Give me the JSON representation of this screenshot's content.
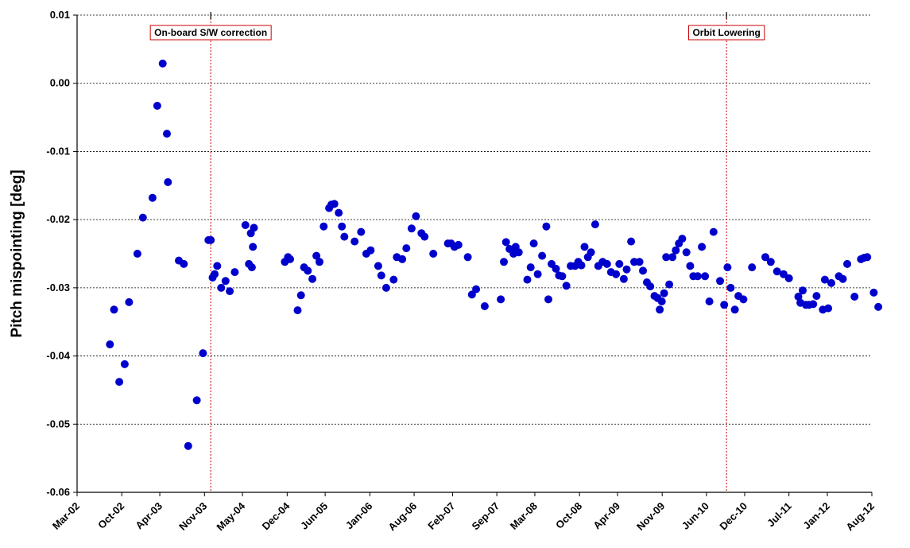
{
  "chart_data": {
    "type": "scatter",
    "title": "",
    "xlabel": "",
    "ylabel": "Pitch mispointing [deg]",
    "ylim": [
      -0.06,
      0.01
    ],
    "yticks": [
      0.01,
      0.0,
      -0.01,
      -0.02,
      -0.03,
      -0.04,
      -0.05,
      -0.06
    ],
    "ytick_labels": [
      "0.01",
      "0.00",
      "-0.01",
      "-0.02",
      "-0.03",
      "-0.04",
      "-0.05",
      "-0.06"
    ],
    "xlim": [
      "2002-03-01",
      "2012-08-01"
    ],
    "xtick_labels": [
      "Mar-02",
      "Oct-02",
      "Apr-03",
      "Nov-03",
      "May-04",
      "Dec-04",
      "Jun-05",
      "Jan-06",
      "Aug-06",
      "Feb-07",
      "Sep-07",
      "Mar-08",
      "Oct-08",
      "Apr-09",
      "Nov-09",
      "Jun-10",
      "Dec-10",
      "Jul-11",
      "Jan-12",
      "Aug-12"
    ],
    "xtick_dates": [
      "2002-03-01",
      "2002-10-01",
      "2003-04-01",
      "2003-11-01",
      "2004-05-01",
      "2004-12-01",
      "2005-06-01",
      "2006-01-01",
      "2006-08-01",
      "2007-02-01",
      "2007-09-01",
      "2008-03-01",
      "2008-10-01",
      "2009-04-01",
      "2009-11-01",
      "2010-06-01",
      "2010-12-01",
      "2011-07-01",
      "2012-01-01",
      "2012-08-01"
    ],
    "horizontal_gridlines": "dotted",
    "marker_color": "#0000cc",
    "reference_lines": [
      {
        "date": "2003-12-01",
        "color": "#cc0000",
        "label": "On-board S/W correction"
      },
      {
        "date": "2010-09-05",
        "color": "#cc0000",
        "label": "Orbit Lowering"
      }
    ],
    "series": [
      {
        "points": [
          [
            "2002-08-05",
            -0.0383
          ],
          [
            "2002-08-25",
            -0.0332
          ],
          [
            "2002-09-19",
            -0.0438
          ],
          [
            "2002-10-15",
            -0.0412
          ],
          [
            "2002-11-05",
            -0.0321
          ],
          [
            "2002-12-15",
            -0.025
          ],
          [
            "2003-01-10",
            -0.0197
          ],
          [
            "2003-02-25",
            -0.0168
          ],
          [
            "2003-03-20",
            -0.0033
          ],
          [
            "2003-04-15",
            0.0029
          ],
          [
            "2003-05-05",
            -0.0074
          ],
          [
            "2003-05-10",
            -0.0145
          ],
          [
            "2003-07-01",
            -0.026
          ],
          [
            "2003-07-25",
            -0.0265
          ],
          [
            "2003-08-15",
            -0.0532
          ],
          [
            "2003-09-25",
            -0.0465
          ],
          [
            "2003-10-25",
            -0.0396
          ],
          [
            "2003-11-20",
            -0.023
          ],
          [
            "2003-12-01",
            -0.023
          ],
          [
            "2003-12-10",
            -0.0285
          ],
          [
            "2003-12-20",
            -0.028
          ],
          [
            "2004-01-01",
            -0.0268
          ],
          [
            "2004-01-20",
            -0.03
          ],
          [
            "2004-02-10",
            -0.029
          ],
          [
            "2004-03-01",
            -0.0305
          ],
          [
            "2004-03-25",
            -0.0277
          ],
          [
            "2004-05-15",
            -0.0208
          ],
          [
            "2004-06-01",
            -0.0265
          ],
          [
            "2004-06-10",
            -0.022
          ],
          [
            "2004-06-15",
            -0.027
          ],
          [
            "2004-06-20",
            -0.024
          ],
          [
            "2004-06-25",
            -0.0212
          ],
          [
            "2004-11-20",
            -0.0262
          ],
          [
            "2004-12-05",
            -0.0255
          ],
          [
            "2004-12-15",
            -0.0258
          ],
          [
            "2005-01-20",
            -0.0333
          ],
          [
            "2005-02-05",
            -0.0311
          ],
          [
            "2005-02-20",
            -0.027
          ],
          [
            "2005-03-10",
            -0.0275
          ],
          [
            "2005-04-01",
            -0.0287
          ],
          [
            "2005-04-20",
            -0.0253
          ],
          [
            "2005-05-05",
            -0.0262
          ],
          [
            "2005-05-25",
            -0.021
          ],
          [
            "2005-06-20",
            -0.0183
          ],
          [
            "2005-07-01",
            -0.0178
          ],
          [
            "2005-07-15",
            -0.0177
          ],
          [
            "2005-08-05",
            -0.019
          ],
          [
            "2005-08-20",
            -0.021
          ],
          [
            "2005-09-01",
            -0.0225
          ],
          [
            "2005-10-20",
            -0.0232
          ],
          [
            "2005-11-20",
            -0.0218
          ],
          [
            "2005-12-15",
            -0.025
          ],
          [
            "2006-01-05",
            -0.0245
          ],
          [
            "2006-02-10",
            -0.0268
          ],
          [
            "2006-02-25",
            -0.0282
          ],
          [
            "2006-03-20",
            -0.03
          ],
          [
            "2006-04-25",
            -0.0288
          ],
          [
            "2006-05-10",
            -0.0255
          ],
          [
            "2006-06-05",
            -0.0258
          ],
          [
            "2006-06-25",
            -0.0242
          ],
          [
            "2006-07-20",
            -0.0213
          ],
          [
            "2006-08-10",
            -0.0195
          ],
          [
            "2006-09-05",
            -0.022
          ],
          [
            "2006-09-20",
            -0.0225
          ],
          [
            "2006-11-01",
            -0.025
          ],
          [
            "2007-01-10",
            -0.0235
          ],
          [
            "2007-01-25",
            -0.0235
          ],
          [
            "2007-02-10",
            -0.024
          ],
          [
            "2007-03-01",
            -0.0237
          ],
          [
            "2007-04-15",
            -0.0255
          ],
          [
            "2007-05-05",
            -0.031
          ],
          [
            "2007-05-25",
            -0.0302
          ],
          [
            "2007-07-05",
            -0.0327
          ],
          [
            "2007-09-20",
            -0.0317
          ],
          [
            "2007-10-05",
            -0.0262
          ],
          [
            "2007-10-15",
            -0.0233
          ],
          [
            "2007-11-01",
            -0.0243
          ],
          [
            "2007-11-20",
            -0.025
          ],
          [
            "2007-11-30",
            -0.024
          ],
          [
            "2007-12-15",
            -0.0248
          ],
          [
            "2008-01-25",
            -0.0288
          ],
          [
            "2008-02-10",
            -0.027
          ],
          [
            "2008-02-25",
            -0.0235
          ],
          [
            "2008-03-15",
            -0.028
          ],
          [
            "2008-04-05",
            -0.0253
          ],
          [
            "2008-04-25",
            -0.021
          ],
          [
            "2008-05-05",
            -0.0317
          ],
          [
            "2008-05-20",
            -0.0265
          ],
          [
            "2008-06-10",
            -0.0272
          ],
          [
            "2008-06-25",
            -0.0282
          ],
          [
            "2008-07-10",
            -0.0283
          ],
          [
            "2008-07-30",
            -0.0297
          ],
          [
            "2008-08-20",
            -0.0268
          ],
          [
            "2008-09-10",
            -0.0268
          ],
          [
            "2008-09-25",
            -0.0262
          ],
          [
            "2008-10-10",
            -0.0267
          ],
          [
            "2008-10-25",
            -0.024
          ],
          [
            "2008-11-10",
            -0.0255
          ],
          [
            "2008-11-25",
            -0.0248
          ],
          [
            "2008-12-15",
            -0.0207
          ],
          [
            "2008-12-30",
            -0.0268
          ],
          [
            "2009-01-20",
            -0.0262
          ],
          [
            "2009-02-10",
            -0.0265
          ],
          [
            "2009-03-01",
            -0.0277
          ],
          [
            "2009-03-25",
            -0.028
          ],
          [
            "2009-04-10",
            -0.0265
          ],
          [
            "2009-05-01",
            -0.0287
          ],
          [
            "2009-05-15",
            -0.0273
          ],
          [
            "2009-06-05",
            -0.0232
          ],
          [
            "2009-06-20",
            -0.0262
          ],
          [
            "2009-07-15",
            -0.0262
          ],
          [
            "2009-08-01",
            -0.0275
          ],
          [
            "2009-08-20",
            -0.0292
          ],
          [
            "2009-09-05",
            -0.0298
          ],
          [
            "2009-09-25",
            -0.0312
          ],
          [
            "2009-10-10",
            -0.0315
          ],
          [
            "2009-10-20",
            -0.0332
          ],
          [
            "2009-10-30",
            -0.032
          ],
          [
            "2009-11-10",
            -0.0308
          ],
          [
            "2009-11-20",
            -0.0255
          ],
          [
            "2009-12-05",
            -0.0295
          ],
          [
            "2009-12-20",
            -0.0255
          ],
          [
            "2010-01-05",
            -0.0245
          ],
          [
            "2010-01-20",
            -0.0235
          ],
          [
            "2010-02-05",
            -0.0228
          ],
          [
            "2010-02-25",
            -0.0248
          ],
          [
            "2010-03-15",
            -0.0268
          ],
          [
            "2010-03-30",
            -0.0283
          ],
          [
            "2010-04-20",
            -0.0283
          ],
          [
            "2010-05-10",
            -0.024
          ],
          [
            "2010-05-25",
            -0.0283
          ],
          [
            "2010-06-15",
            -0.032
          ],
          [
            "2010-07-05",
            -0.0218
          ],
          [
            "2010-08-05",
            -0.029
          ],
          [
            "2010-08-25",
            -0.0325
          ],
          [
            "2010-09-10",
            -0.027
          ],
          [
            "2010-09-25",
            -0.03
          ],
          [
            "2010-10-15",
            -0.0332
          ],
          [
            "2010-11-01",
            -0.0312
          ],
          [
            "2010-11-25",
            -0.0317
          ],
          [
            "2011-01-05",
            -0.027
          ],
          [
            "2011-03-10",
            -0.0255
          ],
          [
            "2011-04-05",
            -0.0262
          ],
          [
            "2011-05-05",
            -0.0276
          ],
          [
            "2011-06-05",
            -0.028
          ],
          [
            "2011-07-01",
            -0.0286
          ],
          [
            "2011-08-15",
            -0.0313
          ],
          [
            "2011-08-25",
            -0.0322
          ],
          [
            "2011-09-05",
            -0.0304
          ],
          [
            "2011-09-20",
            -0.0325
          ],
          [
            "2011-10-05",
            -0.0325
          ],
          [
            "2011-10-25",
            -0.0324
          ],
          [
            "2011-11-10",
            -0.0312
          ],
          [
            "2011-12-10",
            -0.0332
          ],
          [
            "2011-12-20",
            -0.0288
          ],
          [
            "2012-01-05",
            -0.033
          ],
          [
            "2012-01-20",
            -0.0293
          ],
          [
            "2012-02-25",
            -0.0283
          ],
          [
            "2012-03-15",
            -0.0287
          ],
          [
            "2012-04-05",
            -0.0265
          ],
          [
            "2012-05-10",
            -0.0313
          ],
          [
            "2012-06-10",
            -0.0258
          ],
          [
            "2012-06-25",
            -0.0256
          ],
          [
            "2012-07-10",
            -0.0255
          ],
          [
            "2012-08-10",
            -0.0307
          ],
          [
            "2012-09-01",
            -0.0328
          ]
        ]
      }
    ]
  }
}
